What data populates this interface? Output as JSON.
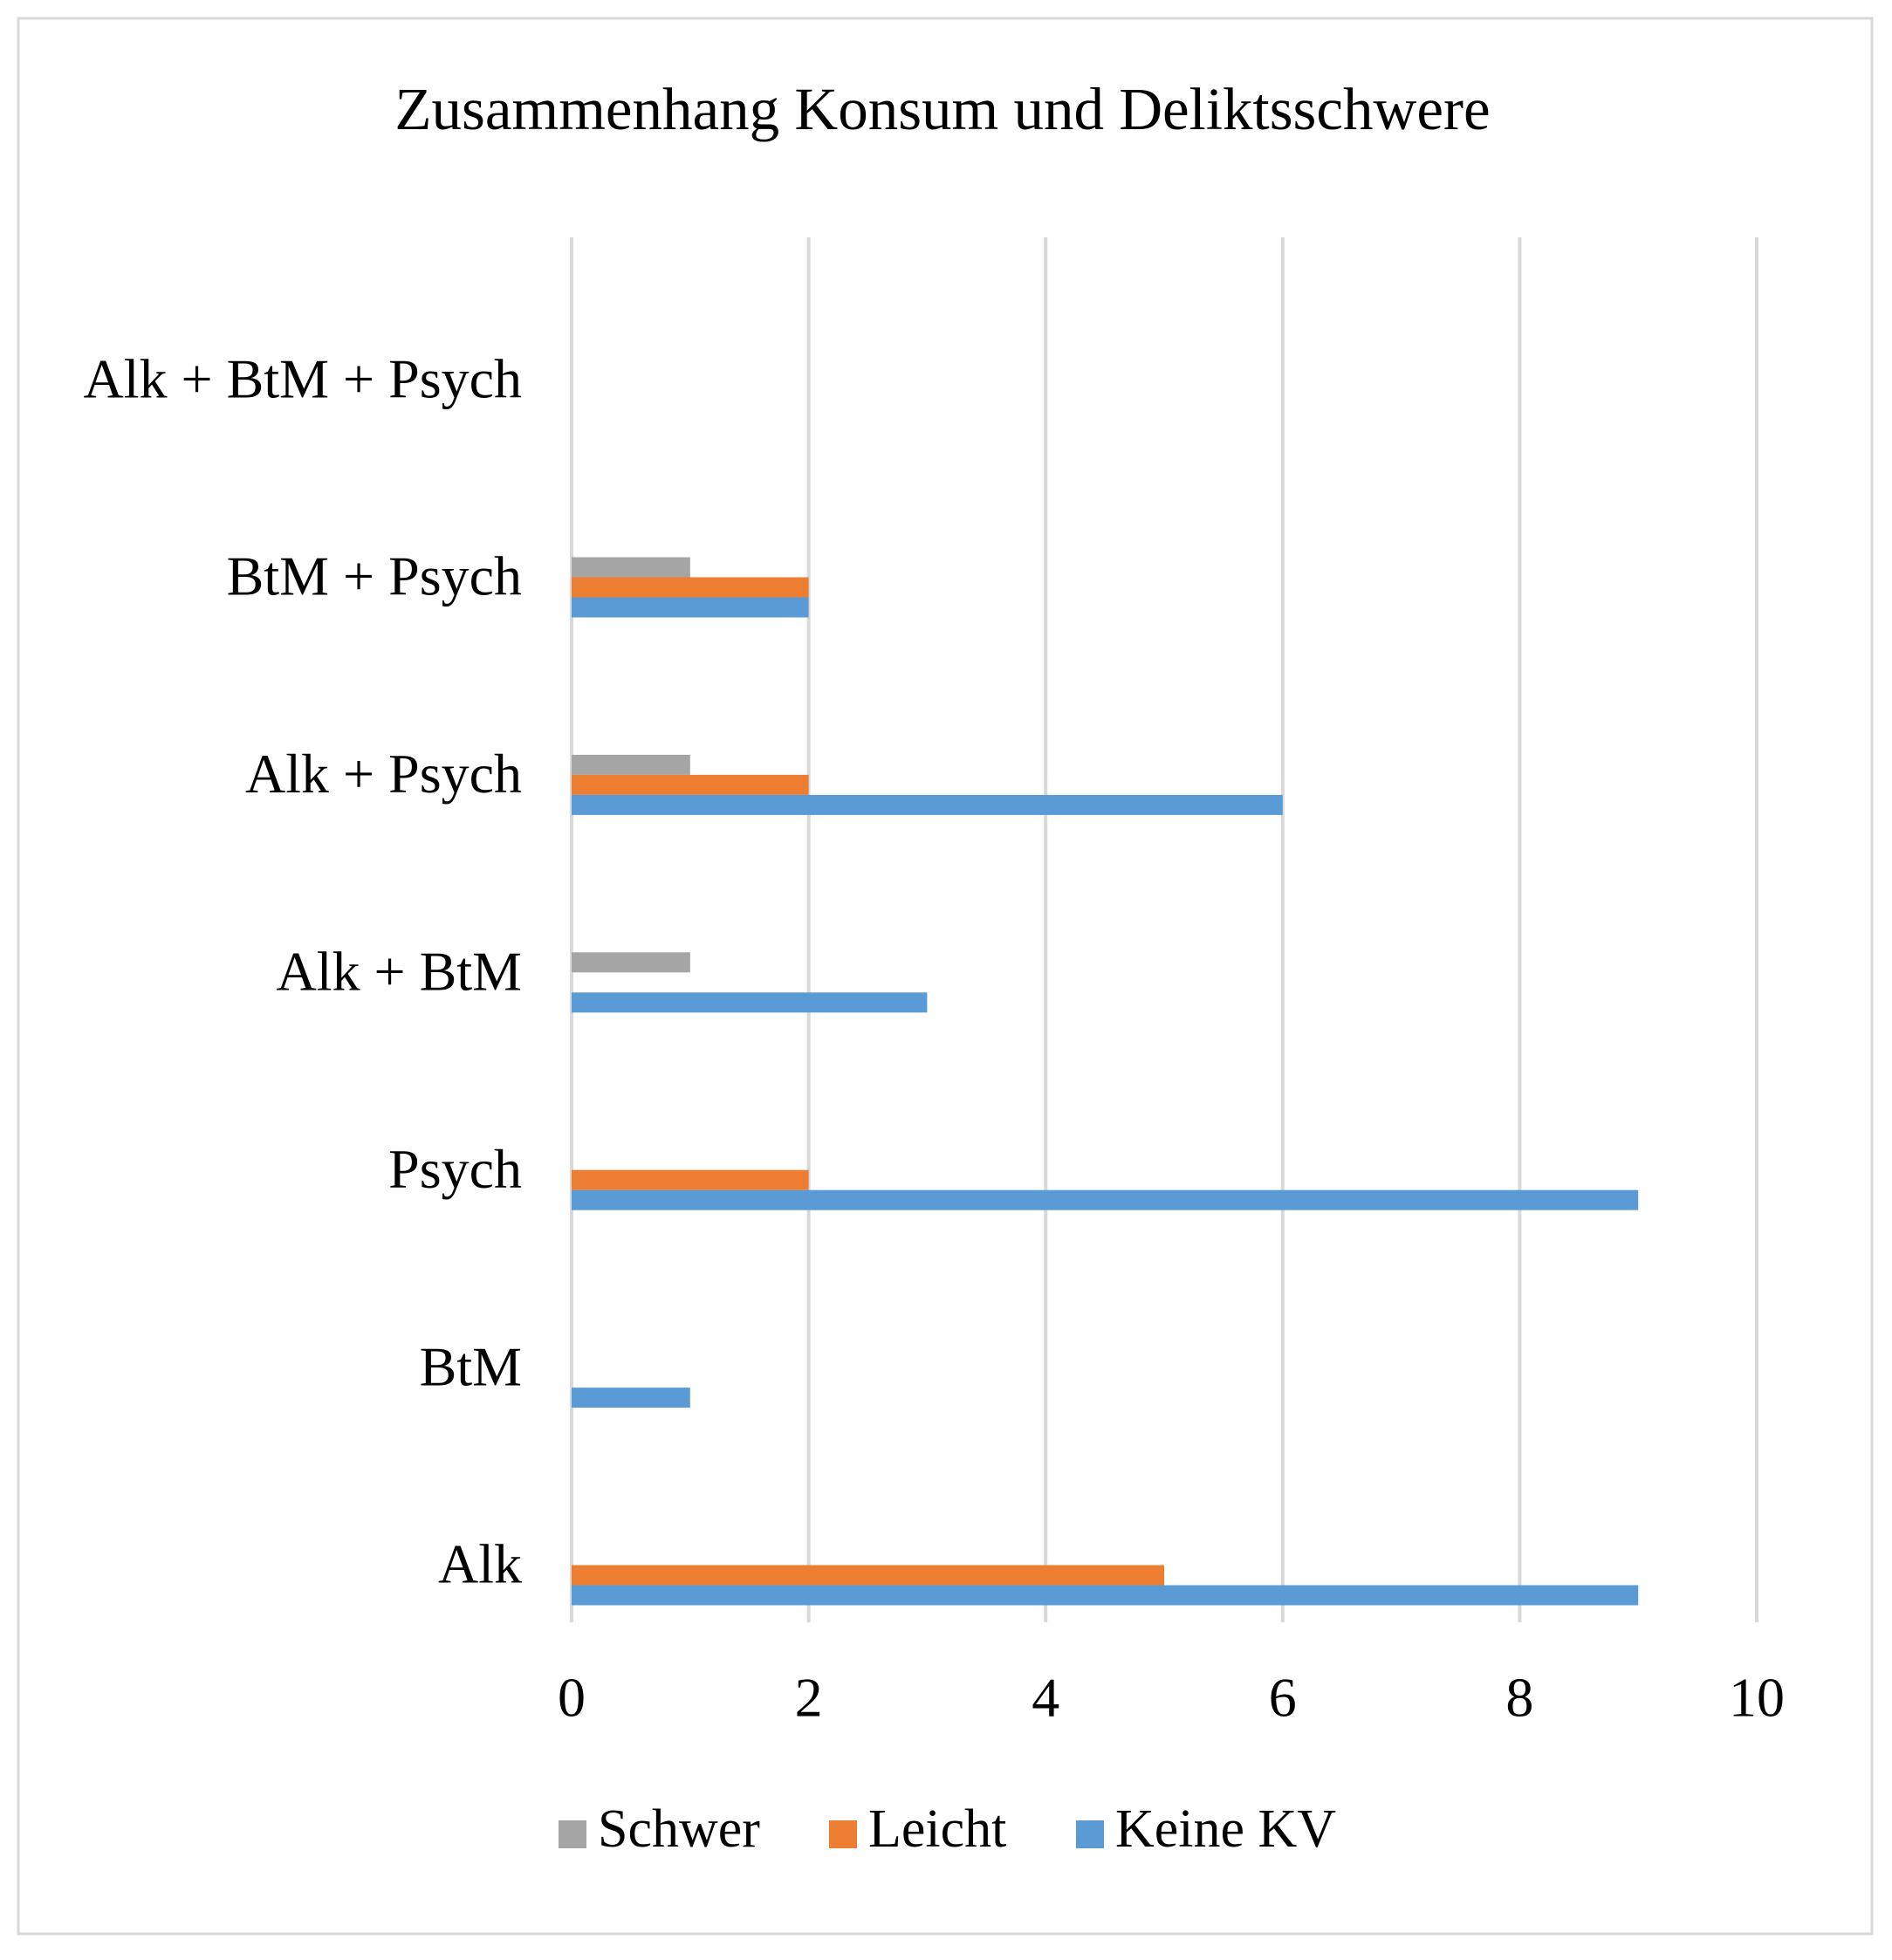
{
  "chart_data": {
    "type": "bar",
    "orientation": "horizontal",
    "title": "Zusammenhang Konsum und Deliktsschwere",
    "categories": [
      "Alk",
      "BtM",
      "Psych",
      "Alk + BtM",
      "Alk + Psych",
      "BtM + Psych",
      "Alk + BtM + Psych"
    ],
    "series": [
      {
        "name": "Schwer",
        "color": "#a5a5a5",
        "values": [
          0,
          0,
          0,
          1,
          1,
          1,
          0
        ]
      },
      {
        "name": "Leicht",
        "color": "#ed7d31",
        "values": [
          5,
          0,
          2,
          0,
          2,
          2,
          0
        ]
      },
      {
        "name": "Keine KV",
        "color": "#5b9bd5",
        "values": [
          9,
          1,
          9,
          3,
          6,
          2,
          0
        ]
      }
    ],
    "xlim": [
      0,
      10
    ],
    "xticks": [
      0,
      2,
      4,
      6,
      8,
      10
    ],
    "grid": true,
    "legend": "bottom"
  }
}
